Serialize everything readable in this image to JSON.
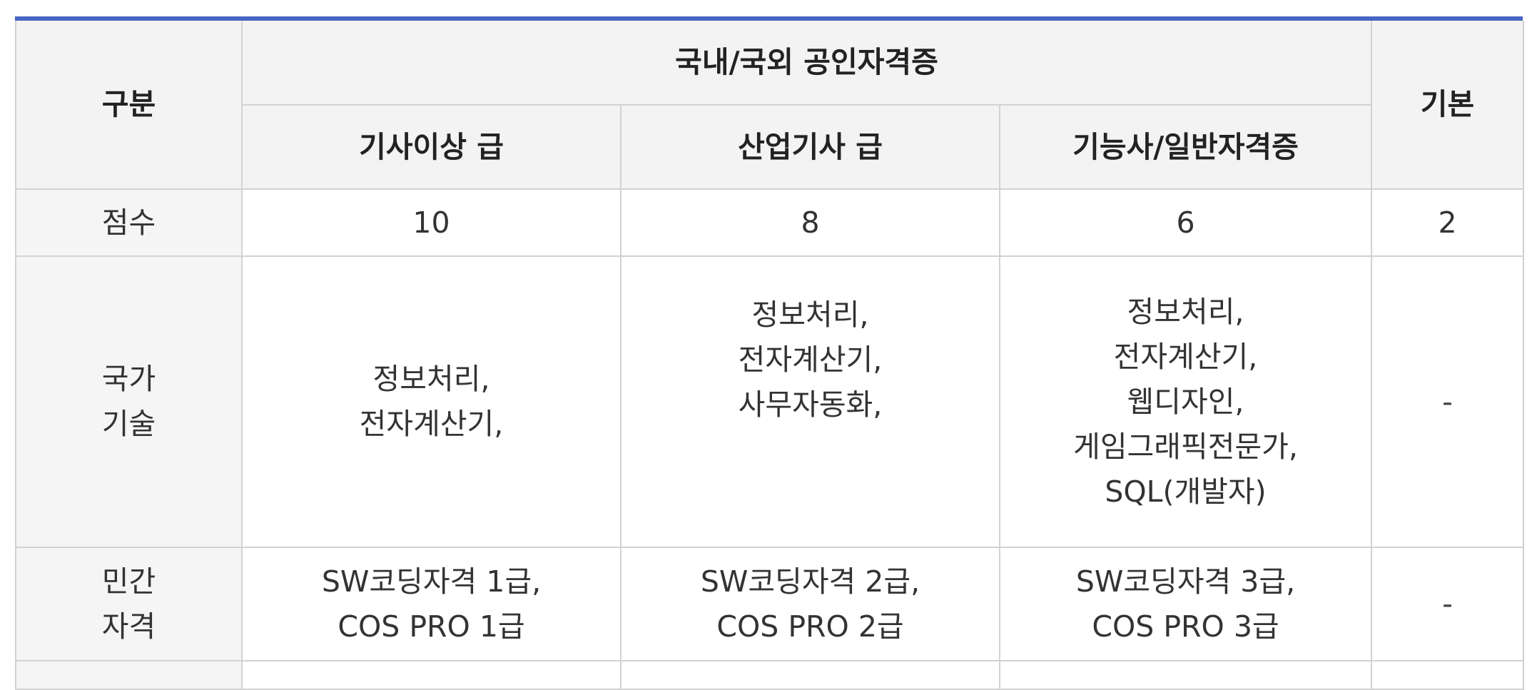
{
  "table": {
    "header": {
      "category": "구분",
      "group": "국내/국외 공인자격증",
      "basic": "기본",
      "columns": [
        "기사이상 급",
        "산업기사 급",
        "기능사/일반자격증"
      ]
    },
    "rows": {
      "score": {
        "label": "점수",
        "values": [
          "10",
          "8",
          "6",
          "2"
        ]
      },
      "national": {
        "label_lines": [
          "국가",
          "기술"
        ],
        "col1": [
          "정보처리,",
          "전자계산기,"
        ],
        "col2": [
          "정보처리,",
          "전자계산기,",
          "사무자동화,"
        ],
        "col3": [
          "정보처리,",
          "전자계산기,",
          "웹디자인,",
          "게임그래픽전문가,",
          "SQL(개발자)"
        ],
        "basic": "-"
      },
      "private": {
        "label_lines": [
          "민간",
          "자격"
        ],
        "col1": [
          "SW코딩자격 1급,",
          "COS PRO 1급"
        ],
        "col2": [
          "SW코딩자격 2급,",
          "COS PRO 2급"
        ],
        "col3": [
          "SW코딩자격 3급,",
          "COS PRO 3급"
        ],
        "basic": "-"
      }
    }
  }
}
